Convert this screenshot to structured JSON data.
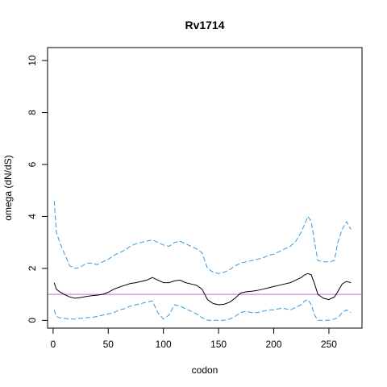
{
  "chart_data": {
    "type": "line",
    "title": "Rv1714",
    "xlabel": "codon",
    "ylabel": "omega (dN/dS)",
    "xlim": [
      -5,
      280
    ],
    "ylim": [
      -0.3,
      10.5
    ],
    "x_ticks": [
      0,
      50,
      100,
      150,
      200,
      250
    ],
    "y_ticks": [
      0,
      2,
      4,
      6,
      8,
      10
    ],
    "reference_line": {
      "y": 1,
      "color": "#cc66cc"
    },
    "series": [
      {
        "style": "solid",
        "color": "#000000",
        "x": [
          1,
          3,
          6,
          10,
          15,
          20,
          25,
          30,
          35,
          40,
          45,
          50,
          55,
          60,
          65,
          70,
          75,
          80,
          85,
          90,
          95,
          100,
          105,
          110,
          115,
          120,
          125,
          130,
          135,
          140,
          145,
          150,
          155,
          160,
          165,
          170,
          175,
          180,
          185,
          190,
          195,
          200,
          205,
          210,
          215,
          220,
          225,
          228,
          231,
          234,
          237,
          240,
          245,
          250,
          255,
          258,
          262,
          266,
          270
        ],
        "y": [
          1.45,
          1.2,
          1.1,
          1.0,
          0.9,
          0.85,
          0.88,
          0.92,
          0.95,
          0.97,
          1.0,
          1.08,
          1.2,
          1.28,
          1.35,
          1.42,
          1.45,
          1.5,
          1.55,
          1.65,
          1.55,
          1.45,
          1.45,
          1.52,
          1.55,
          1.45,
          1.4,
          1.35,
          1.2,
          0.8,
          0.65,
          0.6,
          0.62,
          0.7,
          0.85,
          1.05,
          1.1,
          1.12,
          1.15,
          1.2,
          1.25,
          1.3,
          1.35,
          1.4,
          1.45,
          1.55,
          1.65,
          1.75,
          1.8,
          1.75,
          1.4,
          1.0,
          0.85,
          0.8,
          0.9,
          1.1,
          1.4,
          1.5,
          1.45
        ]
      },
      {
        "style": "dashed",
        "color": "#3399dd",
        "x": [
          1,
          3,
          6,
          10,
          15,
          20,
          25,
          30,
          35,
          40,
          45,
          50,
          55,
          60,
          65,
          70,
          75,
          80,
          85,
          90,
          95,
          100,
          105,
          110,
          115,
          120,
          125,
          130,
          135,
          140,
          145,
          150,
          155,
          160,
          165,
          170,
          175,
          180,
          185,
          190,
          195,
          200,
          205,
          210,
          215,
          220,
          225,
          228,
          231,
          234,
          237,
          240,
          245,
          250,
          255,
          258,
          262,
          266,
          270
        ],
        "y": [
          4.6,
          3.4,
          3.0,
          2.6,
          2.1,
          2.0,
          2.05,
          2.2,
          2.2,
          2.15,
          2.25,
          2.35,
          2.5,
          2.6,
          2.7,
          2.85,
          2.95,
          3.0,
          3.05,
          3.1,
          3.0,
          2.9,
          2.85,
          3.0,
          3.05,
          2.95,
          2.85,
          2.75,
          2.6,
          2.0,
          1.85,
          1.8,
          1.85,
          1.95,
          2.1,
          2.2,
          2.25,
          2.3,
          2.35,
          2.4,
          2.5,
          2.55,
          2.65,
          2.75,
          2.85,
          3.05,
          3.4,
          3.7,
          4.0,
          3.8,
          3.0,
          2.3,
          2.25,
          2.25,
          2.3,
          3.0,
          3.5,
          3.8,
          3.5
        ]
      },
      {
        "style": "dashed",
        "color": "#3399dd",
        "x": [
          1,
          3,
          6,
          10,
          15,
          20,
          25,
          30,
          35,
          40,
          45,
          50,
          55,
          60,
          65,
          70,
          75,
          80,
          85,
          90,
          95,
          100,
          105,
          110,
          115,
          120,
          125,
          130,
          135,
          140,
          145,
          150,
          155,
          160,
          165,
          170,
          175,
          180,
          185,
          190,
          195,
          200,
          205,
          210,
          215,
          220,
          225,
          228,
          231,
          234,
          237,
          240,
          245,
          250,
          255,
          258,
          262,
          266,
          270
        ],
        "y": [
          0.4,
          0.15,
          0.1,
          0.08,
          0.05,
          0.05,
          0.08,
          0.1,
          0.12,
          0.15,
          0.2,
          0.25,
          0.3,
          0.4,
          0.45,
          0.55,
          0.6,
          0.65,
          0.7,
          0.75,
          0.3,
          0.05,
          0.2,
          0.6,
          0.55,
          0.45,
          0.35,
          0.25,
          0.1,
          0.0,
          0.0,
          0.0,
          0.0,
          0.05,
          0.15,
          0.3,
          0.35,
          0.3,
          0.3,
          0.35,
          0.4,
          0.4,
          0.45,
          0.45,
          0.4,
          0.5,
          0.6,
          0.75,
          0.8,
          0.6,
          0.2,
          0.0,
          0.0,
          0.0,
          0.05,
          0.1,
          0.3,
          0.4,
          0.3
        ]
      }
    ]
  }
}
